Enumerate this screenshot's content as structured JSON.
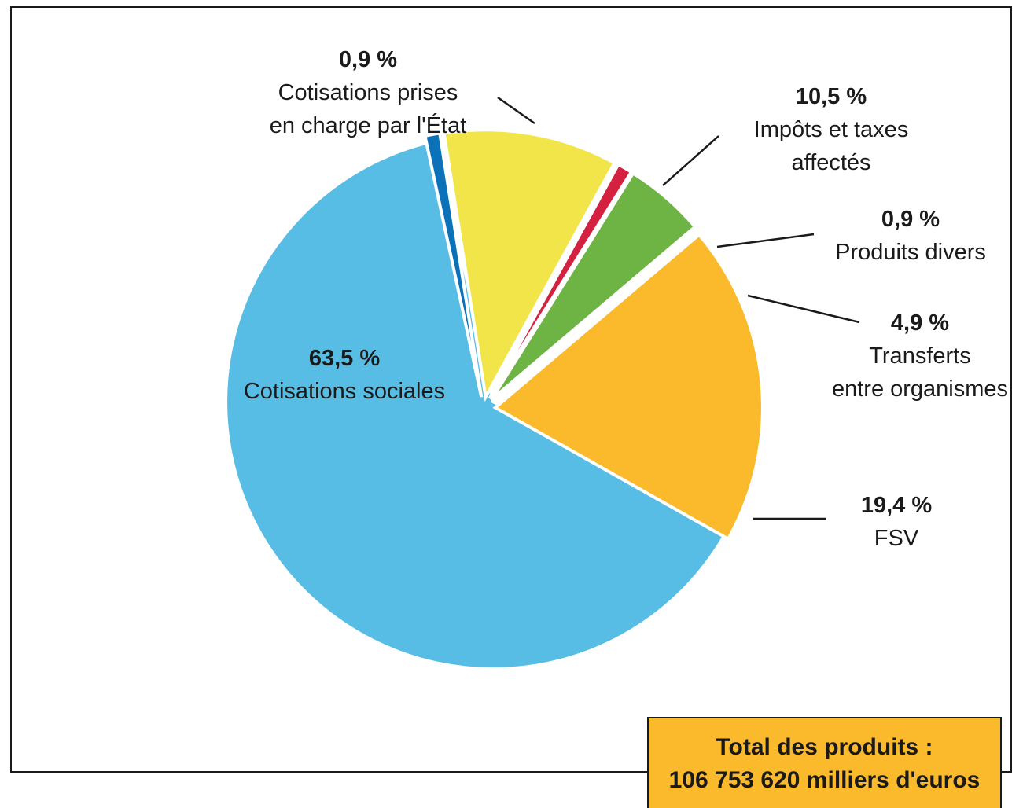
{
  "chart_data": {
    "type": "pie",
    "slices": [
      {
        "label": [
          "Cotisations sociales"
        ],
        "value": 63.5,
        "pct_label": "63,5 %",
        "color": "#58bde4"
      },
      {
        "label": [
          "Cotisations prises",
          "en charge par l'État"
        ],
        "value": 0.9,
        "pct_label": "0,9 %",
        "color": "#0b72b9"
      },
      {
        "label": [
          "Impôts et taxes",
          "affectés"
        ],
        "value": 10.5,
        "pct_label": "10,5 %",
        "color": "#f2e54a"
      },
      {
        "label": [
          "Produits divers"
        ],
        "value": 0.9,
        "pct_label": "0,9 %",
        "color": "#d3213f"
      },
      {
        "label": [
          "Transferts",
          "entre organismes"
        ],
        "value": 4.9,
        "pct_label": "4,9 %",
        "color": "#6db445"
      },
      {
        "label": [
          "FSV"
        ],
        "value": 19.4,
        "pct_label": "19,4 %",
        "color": "#fbb92c"
      }
    ]
  },
  "total": {
    "line1": "Total des produits :",
    "line2": "106 753 620 milliers d'euros"
  }
}
